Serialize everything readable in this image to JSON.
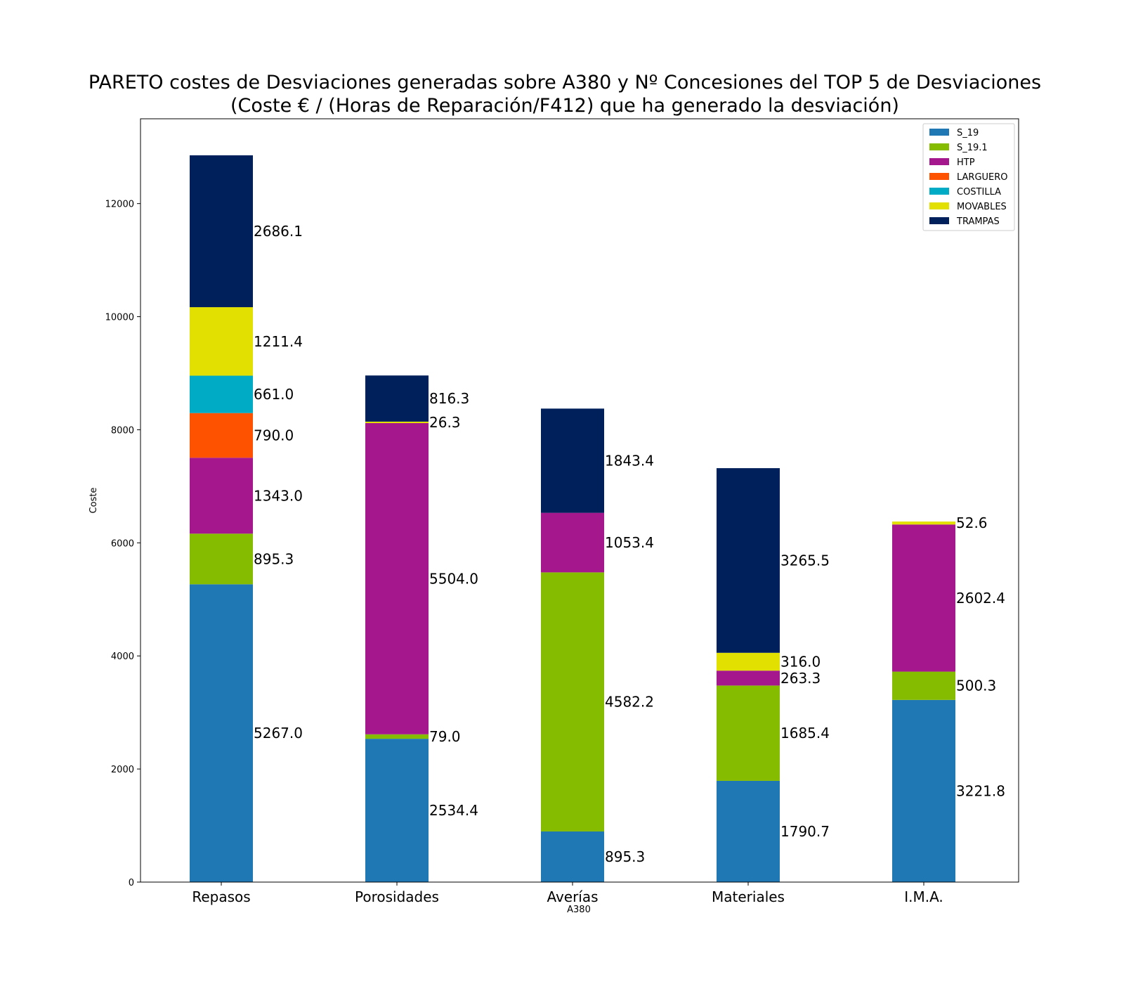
{
  "chart_data": {
    "type": "bar",
    "stacked": true,
    "title": "PARETO costes de Desviaciones  generadas sobre A380 y Nº Concesiones del TOP 5 de Desviaciones",
    "subtitle": "(Coste € / (Horas de Reparación/F412) que ha generado la desviación)",
    "xlabel": "A380",
    "ylabel": "Coste",
    "ylim": [
      0,
      13500
    ],
    "yticks": [
      0,
      2000,
      4000,
      6000,
      8000,
      10000,
      12000
    ],
    "ytick_labels": [
      "0",
      "2000",
      "4000",
      "6000",
      "8000",
      "10000",
      "12000"
    ],
    "categories": [
      "Repasos",
      "Porosidades",
      "Averías",
      "Materiales",
      "I.M.A."
    ],
    "grid": false,
    "legend_position": "top-right",
    "series": [
      {
        "name": "S_19",
        "color": "#1f77b4",
        "values": [
          5267.0,
          2534.4,
          895.3,
          1790.7,
          3221.8
        ],
        "labels": [
          "5267.0",
          "2534.4",
          "895.3",
          "1790.7",
          "3221.8"
        ]
      },
      {
        "name": "S_19.1",
        "color": "#85bc00",
        "values": [
          895.3,
          79.0,
          4582.2,
          1685.4,
          500.3
        ],
        "labels": [
          "895.3",
          "79.0",
          "4582.2",
          "1685.4",
          "500.3"
        ]
      },
      {
        "name": "HTP",
        "color": "#a5178d",
        "values": [
          1343.0,
          5504.0,
          1053.4,
          263.3,
          2602.4
        ],
        "labels": [
          "1343.0",
          "5504.0",
          "1053.4",
          "263.3",
          "2602.4"
        ]
      },
      {
        "name": "LARGUERO",
        "color": "#ff5200",
        "values": [
          790.0,
          0,
          0,
          0,
          0
        ],
        "labels": [
          "790.0",
          "",
          "",
          "",
          ""
        ]
      },
      {
        "name": "COSTILLA",
        "color": "#00abc6",
        "values": [
          661.0,
          0,
          0,
          0,
          0
        ],
        "labels": [
          "661.0",
          "",
          "",
          "",
          ""
        ]
      },
      {
        "name": "MOVABLES",
        "color": "#e1e000",
        "values": [
          1211.4,
          26.3,
          0,
          316.0,
          52.6
        ],
        "labels": [
          "1211.4",
          "26.3",
          "",
          "316.0",
          "52.6"
        ]
      },
      {
        "name": "TRAMPAS",
        "color": "#00205b",
        "values": [
          2686.1,
          816.3,
          1843.4,
          3265.5,
          0
        ],
        "labels": [
          "2686.1",
          "816.3",
          "1843.4",
          "3265.5",
          ""
        ]
      }
    ]
  }
}
